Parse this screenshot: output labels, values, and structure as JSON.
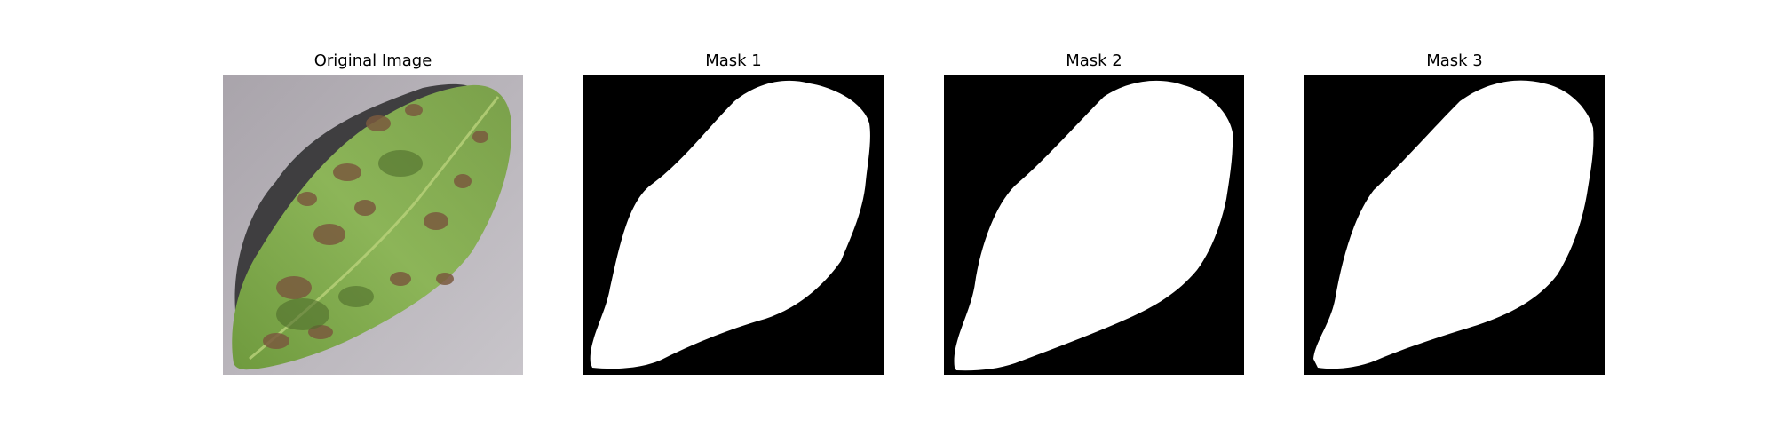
{
  "panels": [
    {
      "title": "Original Image",
      "kind": "photo"
    },
    {
      "title": "Mask 1",
      "kind": "mask"
    },
    {
      "title": "Mask 2",
      "kind": "mask"
    },
    {
      "title": "Mask 3",
      "kind": "mask"
    }
  ],
  "colors": {
    "mask_background": "#000000",
    "mask_foreground": "#ffffff",
    "photo_background": "#b5b1b7",
    "leaf_green": "#7fa94a",
    "leaf_dark": "#4f6d2c",
    "lesion_brown": "#7a5a3e",
    "shadow": "#2a2a2c"
  }
}
